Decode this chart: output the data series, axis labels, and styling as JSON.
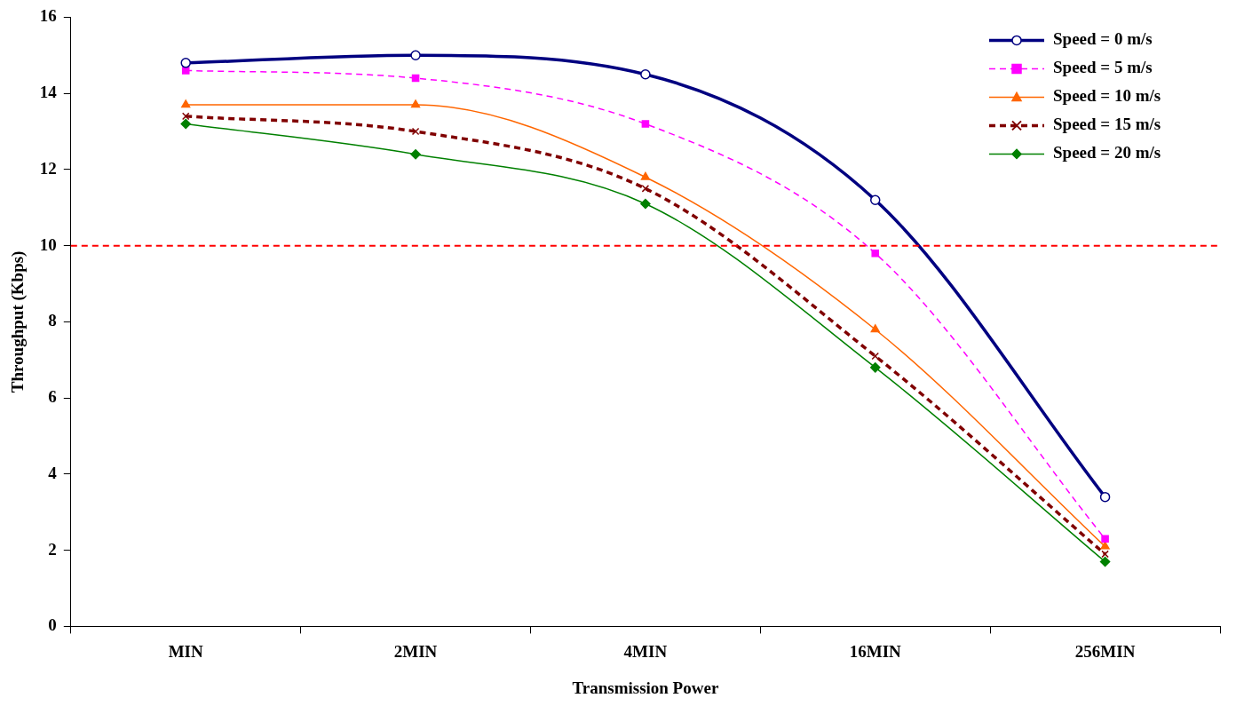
{
  "chart_data": {
    "type": "line",
    "xlabel": "Transmission Power",
    "ylabel": "Throughput (Kbps)",
    "categories": [
      "MIN",
      "2MIN",
      "4MIN",
      "16MIN",
      "256MIN"
    ],
    "series": [
      {
        "name": "Speed = 0 m/s",
        "color": "#000080",
        "marker": "circle",
        "line_style": "solid",
        "values": [
          14.8,
          15.0,
          14.5,
          11.2,
          3.4
        ]
      },
      {
        "name": "Speed = 5 m/s",
        "color": "#ff00ff",
        "marker": "square",
        "line_style": "dashed",
        "values": [
          14.6,
          14.4,
          13.2,
          9.8,
          2.3
        ]
      },
      {
        "name": "Speed = 10 m/s",
        "color": "#ff6600",
        "marker": "triangle",
        "line_style": "solid",
        "values": [
          13.7,
          13.7,
          11.8,
          7.8,
          2.1
        ]
      },
      {
        "name": "Speed = 15 m/s",
        "color": "#800000",
        "marker": "cross",
        "line_style": "dashed",
        "values": [
          13.4,
          13.0,
          11.5,
          7.1,
          1.9
        ]
      },
      {
        "name": "Speed = 20 m/s",
        "color": "#008000",
        "marker": "diamond",
        "line_style": "solid",
        "values": [
          13.2,
          12.4,
          11.1,
          6.8,
          1.7
        ]
      }
    ],
    "ylim": [
      0,
      16
    ],
    "yticks": [
      0,
      2,
      4,
      6,
      8,
      10,
      12,
      14,
      16
    ],
    "grid": false,
    "legend": "top right",
    "ref_lines": [
      {
        "axis": "y",
        "value": 10,
        "color": "#ff0000",
        "line_style": "dashed"
      }
    ]
  }
}
